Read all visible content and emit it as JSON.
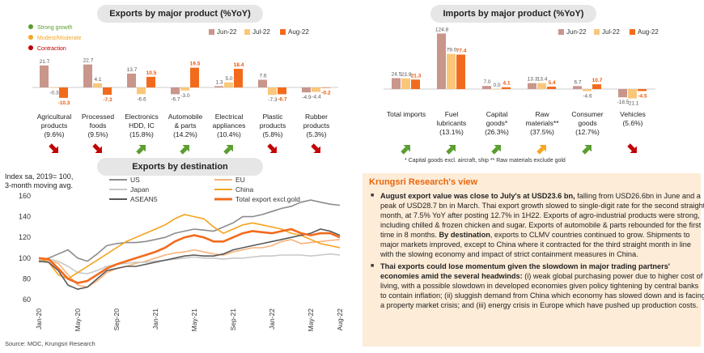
{
  "exports_title": "Exports by major product (%YoY)",
  "imports_title": "Imports by major product (%YoY)",
  "dest_title": "Exports by destination",
  "growth_legend": [
    {
      "label": "Strong growth",
      "color": "#5a9e2f"
    },
    {
      "label": "Modest/Moderate",
      "color": "#f5a623"
    },
    {
      "label": "Contraction",
      "color": "#c00000"
    }
  ],
  "colors": {
    "jun": "#c9968c",
    "jul": "#fac77a",
    "aug": "#f26b1d",
    "pill": "#e6e6e6",
    "view_bg": "#fdecd8",
    "view_title": "#e8660c"
  },
  "line_ylabel": "Index sa, 2019= 100,\n3-month moving avg.",
  "note": "* Capital goods excl. aircraft, ship        ** Raw materials exclude gold",
  "source": "Source: MOC, Krungsri Research",
  "view": {
    "title": "Krungsri Research's view",
    "p1_bold": "August export value was close to July's at USD23.6 bn,",
    "p1_rest": " falling from USD26.6bn in June and a peak of USD28.7 bn in March. Thai export growth slowed to single-digit rate for the second straight month, at 7.5% YoY after posting 12.7% in 1H22. Exports of agro-industrial products were strong, including chilled & frozen chicken and sugar. Exports of automobile & parts rebounded for the first time in 8 months. ",
    "p1_bold2": "By destination",
    "p1_rest2": ", exports to CLMV countries continued to grow. Shipments to major markets improved, except to China where it contracted for the third straight month in line with the slowing economy and impact of strict containment measures in China.",
    "p2_bold": "Thai exports could lose momentum given the slowdown in major trading partners' economies amid the several headwinds:",
    "p2_rest": " (i) weak global purchasing power due to higher cost of living, with a possible slowdown in developed economies given policy tightening by central banks to contain inflation; (ii) sluggish demand from China which economy has slowed down and is facing a property market crisis; and (iii) energy crisis in Europe which have pushed up production costs."
  },
  "chart_data": [
    {
      "type": "bar",
      "title": "Exports by major product (%YoY)",
      "categories": [
        "Agricultural\nproducts\n(9.6%)",
        "Processed\nfoods\n(9.5%)",
        "Electronics\nHDD, IC\n(15.8%)",
        "Automobile\n& parts\n(14.2%)",
        "Electrical\nappliances\n(10.4%)",
        "Plastic\nproducts\n(5.8%)",
        "Rubber\nproducts\n(5.3%)"
      ],
      "series": [
        {
          "name": "Jun-22",
          "values": [
            21.7,
            22.7,
            13.7,
            -6.7,
            1.3,
            7.6,
            -4.9
          ]
        },
        {
          "name": "Jul-22",
          "values": [
            -0.3,
            4.1,
            -6.6,
            -3.0,
            5.0,
            -7.3,
            -4.4
          ]
        },
        {
          "name": "Aug-22",
          "values": [
            -10.3,
            -7.3,
            10.5,
            19.5,
            18.4,
            -6.7,
            -0.2
          ]
        }
      ],
      "signals": [
        "Contraction",
        "Contraction",
        "Strong growth",
        "Strong growth",
        "Strong growth",
        "Contraction",
        "Contraction"
      ]
    },
    {
      "type": "bar",
      "title": "Imports by major product (%YoY)",
      "categories": [
        "Total imports",
        "Fuel\nlubricants\n(13.1%)",
        "Capital\ngoods*\n(26.3%)",
        "Raw\nmaterials**\n(37.5%)",
        "Consumer\ngoods\n(12.7%)",
        "Vehicles\n(5.6%)"
      ],
      "series": [
        {
          "name": "Jun-22",
          "values": [
            24.5,
            124.8,
            7.0,
            13.3,
            6.7,
            -18.5
          ]
        },
        {
          "name": "Jul-22",
          "values": [
            23.9,
            79.0,
            0.0,
            13.4,
            -4.6,
            -21.1
          ]
        },
        {
          "name": "Aug-22",
          "values": [
            21.3,
            77.4,
            4.1,
            5.4,
            10.7,
            -4.5
          ]
        }
      ],
      "signals": [
        "Strong growth",
        "Strong growth",
        "Strong growth",
        "Modest/Moderate",
        "Strong growth",
        "Contraction"
      ]
    },
    {
      "type": "line",
      "title": "Exports by destination",
      "ylabel": "Index sa, 2019= 100, 3-month moving avg.",
      "ylim": [
        60,
        160
      ],
      "yticks": [
        60,
        80,
        100,
        120,
        140,
        160
      ],
      "x": [
        "Jan-20",
        "Feb-20",
        "Mar-20",
        "Apr-20",
        "May-20",
        "Jun-20",
        "Jul-20",
        "Aug-20",
        "Sep-20",
        "Oct-20",
        "Nov-20",
        "Dec-20",
        "Jan-21",
        "Feb-21",
        "Mar-21",
        "Apr-21",
        "May-21",
        "Jun-21",
        "Jul-21",
        "Aug-21",
        "Sep-21",
        "Oct-21",
        "Nov-21",
        "Dec-21",
        "Jan-22",
        "Feb-22",
        "Mar-22",
        "Apr-22",
        "May-22",
        "Jun-22",
        "Jul-22",
        "Aug-22"
      ],
      "xtick_labels": [
        "Jan-20",
        "May-20",
        "Sep-20",
        "Jan-21",
        "May-21",
        "Sep-21",
        "Jan-22",
        "May-22",
        "Aug-22"
      ],
      "series": [
        {
          "name": "US",
          "color": "#8c8c8c",
          "values": [
            98,
            100,
            104,
            108,
            100,
            97,
            104,
            112,
            114,
            115,
            115,
            116,
            118,
            120,
            124,
            126,
            128,
            127,
            126,
            130,
            134,
            140,
            140,
            142,
            145,
            148,
            150,
            154,
            156,
            154,
            152,
            151
          ]
        },
        {
          "name": "EU",
          "color": "#f7b27a",
          "values": [
            96,
            98,
            95,
            84,
            74,
            72,
            78,
            86,
            90,
            92,
            95,
            97,
            100,
            103,
            105,
            106,
            108,
            106,
            104,
            103,
            106,
            108,
            110,
            110,
            112,
            116,
            118,
            114,
            115,
            116,
            117,
            118
          ]
        },
        {
          "name": "Japan",
          "color": "#c8c8c8",
          "values": [
            98,
            99,
            97,
            92,
            86,
            85,
            88,
            92,
            94,
            95,
            96,
            96,
            97,
            98,
            99,
            100,
            101,
            100,
            100,
            99,
            100,
            100,
            101,
            102,
            102,
            103,
            103,
            103,
            102,
            103,
            104,
            103
          ]
        },
        {
          "name": "China",
          "color": "#f6a21b",
          "values": [
            100,
            96,
            84,
            80,
            86,
            92,
            98,
            104,
            110,
            116,
            120,
            124,
            128,
            132,
            138,
            142,
            140,
            138,
            130,
            124,
            128,
            132,
            134,
            132,
            130,
            128,
            124,
            122,
            118,
            114,
            112,
            110
          ]
        },
        {
          "name": "ASEAN5",
          "color": "#595959",
          "values": [
            97,
            96,
            88,
            74,
            70,
            72,
            80,
            88,
            90,
            92,
            92,
            94,
            96,
            98,
            100,
            102,
            103,
            102,
            102,
            104,
            108,
            110,
            112,
            114,
            116,
            118,
            120,
            122,
            124,
            128,
            126,
            122
          ]
        },
        {
          "name": "Total export excl.gold",
          "color": "#f26b1d",
          "values": [
            100,
            99,
            90,
            80,
            76,
            78,
            84,
            90,
            94,
            97,
            100,
            103,
            106,
            110,
            116,
            120,
            122,
            120,
            116,
            116,
            120,
            124,
            126,
            125,
            124,
            126,
            128,
            124,
            122,
            124,
            124,
            120
          ]
        }
      ]
    }
  ]
}
